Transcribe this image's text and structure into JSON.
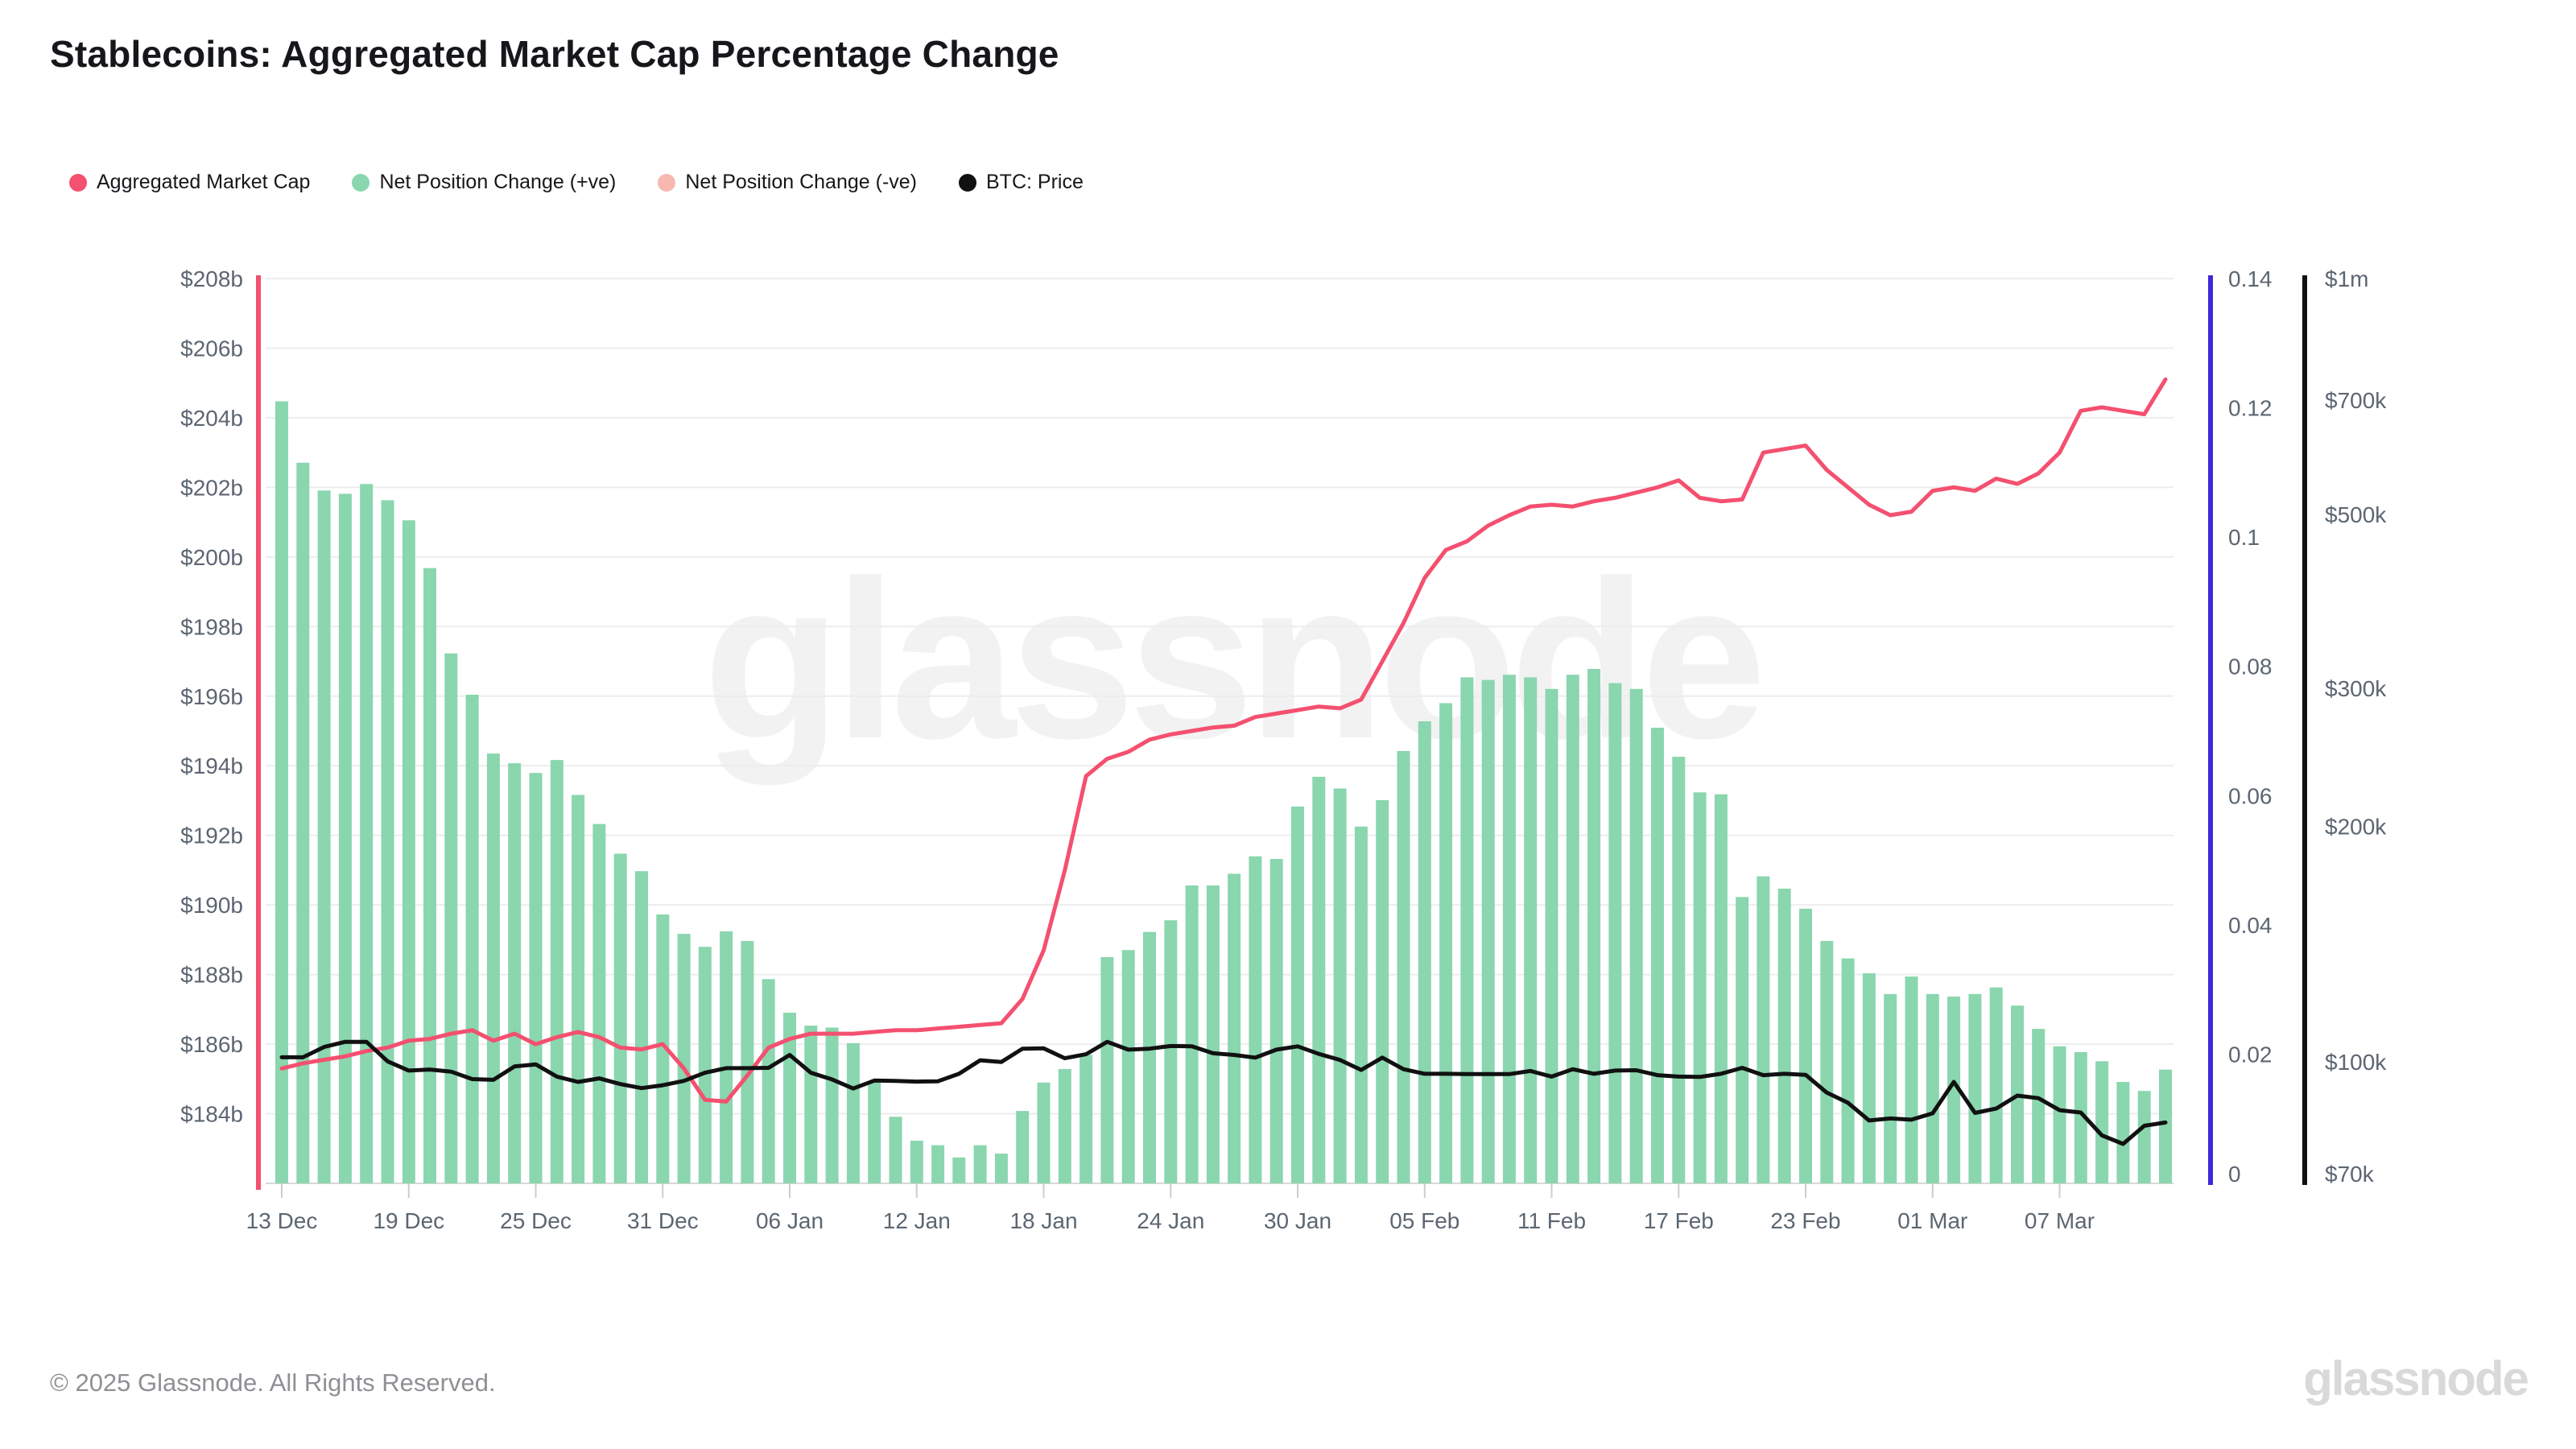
{
  "page": {
    "title": "Stablecoins: Aggregated Market Cap Percentage Change"
  },
  "legend": [
    {
      "label": "Aggregated Market Cap",
      "color": "#f4506f"
    },
    {
      "label": "Net Position Change (+ve)",
      "color": "#8ad6ae"
    },
    {
      "label": "Net Position Change (-ve)",
      "color": "#f6b8b0"
    },
    {
      "label": "BTC: Price",
      "color": "#111111"
    }
  ],
  "watermark": "glassnode",
  "footer": {
    "copyright": "© 2025 Glassnode. All Rights Reserved.",
    "logo": "glassnode"
  },
  "chart_data": {
    "type": "combo",
    "title": "Stablecoins: Aggregated Market Cap Percentage Change",
    "dates": [
      "13 Dec",
      "14 Dec",
      "15 Dec",
      "16 Dec",
      "17 Dec",
      "18 Dec",
      "19 Dec",
      "20 Dec",
      "21 Dec",
      "22 Dec",
      "23 Dec",
      "24 Dec",
      "25 Dec",
      "26 Dec",
      "27 Dec",
      "28 Dec",
      "29 Dec",
      "30 Dec",
      "31 Dec",
      "01 Jan",
      "02 Jan",
      "03 Jan",
      "04 Jan",
      "05 Jan",
      "06 Jan",
      "07 Jan",
      "08 Jan",
      "09 Jan",
      "10 Jan",
      "11 Jan",
      "12 Jan",
      "13 Jan",
      "14 Jan",
      "15 Jan",
      "16 Jan",
      "17 Jan",
      "18 Jan",
      "19 Jan",
      "20 Jan",
      "21 Jan",
      "22 Jan",
      "23 Jan",
      "24 Jan",
      "25 Jan",
      "26 Jan",
      "27 Jan",
      "28 Jan",
      "29 Jan",
      "30 Jan",
      "31 Jan",
      "01 Feb",
      "02 Feb",
      "03 Feb",
      "04 Feb",
      "05 Feb",
      "06 Feb",
      "07 Feb",
      "08 Feb",
      "09 Feb",
      "10 Feb",
      "11 Feb",
      "12 Feb",
      "13 Feb",
      "14 Feb",
      "15 Feb",
      "16 Feb",
      "17 Feb",
      "18 Feb",
      "19 Feb",
      "20 Feb",
      "21 Feb",
      "22 Feb",
      "23 Feb",
      "24 Feb",
      "25 Feb",
      "26 Feb",
      "27 Feb",
      "28 Feb",
      "01 Mar",
      "02 Mar",
      "03 Mar",
      "04 Mar",
      "05 Mar",
      "06 Mar",
      "07 Mar",
      "08 Mar",
      "09 Mar",
      "10 Mar",
      "11 Mar",
      "12 Mar"
    ],
    "x_tick_indices": [
      0,
      6,
      12,
      18,
      24,
      30,
      36,
      42,
      48,
      54,
      60,
      66,
      72,
      78,
      84
    ],
    "x_tick_labels": [
      "13 Dec",
      "19 Dec",
      "25 Dec",
      "31 Dec",
      "06 Jan",
      "12 Jan",
      "18 Jan",
      "24 Jan",
      "30 Jan",
      "05 Feb",
      "11 Feb",
      "17 Feb",
      "23 Feb",
      "01 Mar",
      "07 Mar"
    ],
    "axes": {
      "left": {
        "range": [
          182,
          208
        ],
        "axis_color": "#f4506f",
        "ticks": [
          {
            "label": "$208b",
            "value": 208
          },
          {
            "label": "$206b",
            "value": 206
          },
          {
            "label": "$204b",
            "value": 204
          },
          {
            "label": "$202b",
            "value": 202
          },
          {
            "label": "$200b",
            "value": 200
          },
          {
            "label": "$198b",
            "value": 198
          },
          {
            "label": "$196b",
            "value": 196
          },
          {
            "label": "$194b",
            "value": 194
          },
          {
            "label": "$192b",
            "value": 192
          },
          {
            "label": "$190b",
            "value": 190
          },
          {
            "label": "$188b",
            "value": 188
          },
          {
            "label": "$186b",
            "value": 186
          },
          {
            "label": "$184b",
            "value": 184
          }
        ]
      },
      "right_ratio": {
        "range": [
          0,
          0.14
        ],
        "axis_color": "#3e28d8",
        "ticks": [
          {
            "label": "0.14",
            "value": 0.14
          },
          {
            "label": "0.12",
            "value": 0.12
          },
          {
            "label": "0.1",
            "value": 0.1
          },
          {
            "label": "0.08",
            "value": 0.08
          },
          {
            "label": "0.06",
            "value": 0.06
          },
          {
            "label": "0.04",
            "value": 0.04
          },
          {
            "label": "0.02",
            "value": 0.02
          },
          {
            "label": "0",
            "value": 0
          }
        ]
      },
      "right_price": {
        "range": [
          70000,
          1000000
        ],
        "scale": "log",
        "axis_color": "#111111",
        "ticks": [
          {
            "label": "$1m",
            "value": 1000000
          },
          {
            "label": "$700k",
            "value": 700000
          },
          {
            "label": "$500k",
            "value": 500000
          },
          {
            "label": "$300k",
            "value": 300000
          },
          {
            "label": "$200k",
            "value": 200000
          },
          {
            "label": "$100k",
            "value": 100000
          },
          {
            "label": "$70k",
            "value": 70000
          }
        ]
      }
    },
    "series": [
      {
        "name": "Net Position Change (+ve)",
        "type": "bar",
        "axis": "right_ratio",
        "color": "#8ad6ae",
        "values": [
          0.121,
          0.1115,
          0.1072,
          0.1067,
          0.1082,
          0.1057,
          0.1026,
          0.0952,
          0.082,
          0.0756,
          0.0665,
          0.065,
          0.0635,
          0.0655,
          0.0601,
          0.0556,
          0.051,
          0.0483,
          0.0416,
          0.0386,
          0.0366,
          0.039,
          0.0375,
          0.0316,
          0.0264,
          0.0244,
          0.0241,
          0.0217,
          0.0158,
          0.0103,
          0.0066,
          0.0059,
          0.004,
          0.0059,
          0.0046,
          0.0112,
          0.0156,
          0.0177,
          0.0199,
          0.035,
          0.0361,
          0.0389,
          0.0407,
          0.0461,
          0.0461,
          0.0479,
          0.0506,
          0.0502,
          0.0583,
          0.0629,
          0.0611,
          0.0552,
          0.0593,
          0.0669,
          0.0715,
          0.0743,
          0.0783,
          0.0779,
          0.0787,
          0.0783,
          0.0765,
          0.0787,
          0.0796,
          0.0774,
          0.0765,
          0.0705,
          0.066,
          0.0605,
          0.0602,
          0.0443,
          0.0475,
          0.0456,
          0.0425,
          0.0375,
          0.0348,
          0.0325,
          0.0293,
          0.032,
          0.0293,
          0.0289,
          0.0293,
          0.0303,
          0.0275,
          0.0239,
          0.0212,
          0.0203,
          0.0189,
          0.0157,
          0.0143,
          0.0176
        ]
      },
      {
        "name": "Aggregated Market Cap",
        "type": "line",
        "axis": "left",
        "color": "#f4506f",
        "values": [
          185.3,
          185.45,
          185.55,
          185.65,
          185.8,
          185.9,
          186.1,
          186.15,
          186.3,
          186.4,
          186.1,
          186.3,
          186.0,
          186.2,
          186.35,
          186.2,
          185.9,
          185.85,
          186.0,
          185.3,
          184.4,
          184.35,
          185.1,
          185.9,
          186.15,
          186.3,
          186.3,
          186.3,
          186.35,
          186.4,
          186.4,
          186.45,
          186.5,
          186.55,
          186.6,
          187.3,
          188.7,
          191.0,
          193.7,
          194.2,
          194.4,
          194.75,
          194.9,
          195.0,
          195.1,
          195.15,
          195.4,
          195.5,
          195.6,
          195.7,
          195.65,
          195.9,
          197.0,
          198.1,
          199.4,
          200.2,
          200.45,
          200.9,
          201.2,
          201.45,
          201.5,
          201.45,
          201.6,
          201.7,
          201.85,
          202.0,
          202.2,
          201.7,
          201.6,
          201.65,
          203.0,
          203.1,
          203.2,
          202.5,
          202.0,
          201.5,
          201.2,
          201.3,
          201.9,
          202.0,
          201.9,
          202.25,
          202.1,
          202.4,
          203.0,
          204.2,
          204.3,
          204.2,
          204.1,
          205.1
        ]
      },
      {
        "name": "BTC: Price",
        "type": "line",
        "axis": "right_price",
        "color": "#111111",
        "values": [
          101400,
          101400,
          104500,
          106100,
          106100,
          100200,
          97500,
          97800,
          97200,
          95100,
          94900,
          98700,
          99300,
          95800,
          94300,
          95300,
          93700,
          92600,
          93400,
          94600,
          96900,
          98200,
          98200,
          98300,
          102100,
          96900,
          95000,
          92500,
          94700,
          94600,
          94400,
          94500,
          96600,
          100500,
          100000,
          104000,
          104100,
          101100,
          102300,
          106100,
          103700,
          104000,
          104800,
          104700,
          102600,
          102100,
          101300,
          103700,
          104700,
          102400,
          100600,
          97700,
          101300,
          97900,
          96600,
          96600,
          96500,
          96500,
          96500,
          97400,
          95800,
          97900,
          96600,
          97500,
          97600,
          96200,
          95800,
          95700,
          96600,
          98300,
          96200,
          96600,
          96300,
          91400,
          88700,
          84200,
          84700,
          84400,
          86000,
          94300,
          86100,
          87200,
          90600,
          89900,
          86800,
          86200,
          80600,
          78600,
          82900,
          83700
        ]
      }
    ],
    "grid": true,
    "legend_position": "top-left"
  }
}
